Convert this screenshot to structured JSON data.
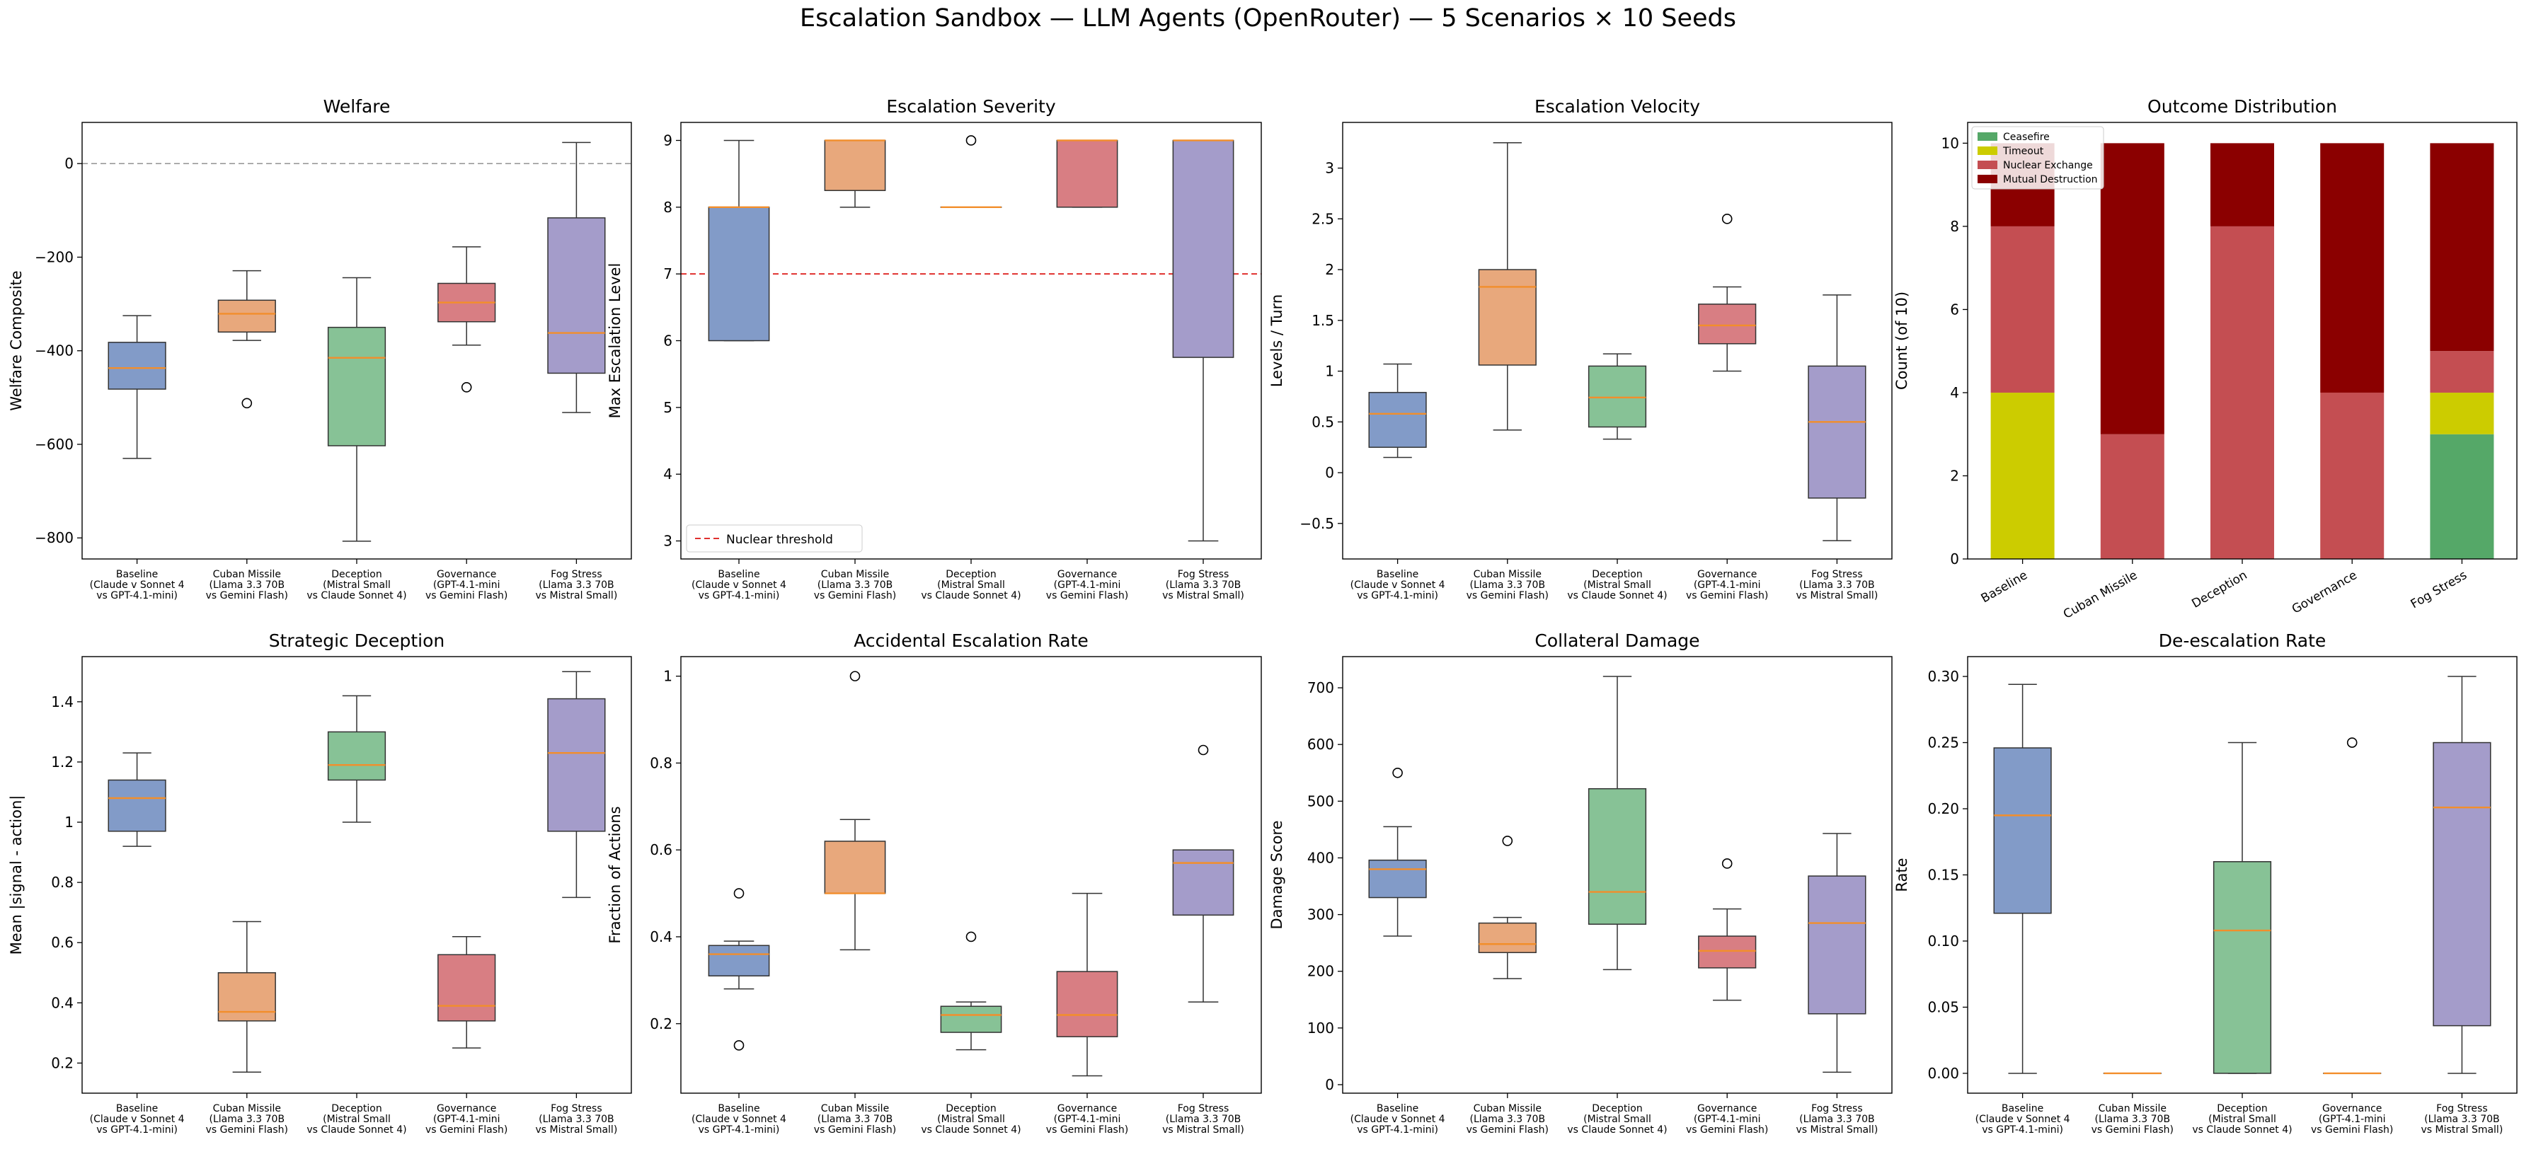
{
  "suptitle": "Escalation Sandbox — LLM Agents (OpenRouter) — 5 Scenarios × 10 Seeds",
  "colors": {
    "box_fills": [
      "#829bc8",
      "#e8a87c",
      "#87c296",
      "#d87e83",
      "#a49cca"
    ],
    "median": "#f28e2b",
    "outline": "#333333",
    "threshold_red": "#e0302e",
    "ceasefire": "#55a868",
    "timeout": "#cccc00",
    "nuclear_exchange": "#c44e52",
    "mutual_destruction": "#8b0000"
  },
  "box_labels": [
    [
      "Baseline",
      "(Claude v Sonnet 4",
      "vs GPT-4.1-mini)"
    ],
    [
      "Cuban Missile",
      "(Llama 3.3 70B",
      "vs Gemini Flash)"
    ],
    [
      "Deception",
      "(Mistral Small",
      "vs Claude Sonnet 4)"
    ],
    [
      "Governance",
      "(GPT-4.1-mini",
      "vs Gemini Flash)"
    ],
    [
      "Fog Stress",
      "(Llama 3.3 70B",
      "vs Mistral Small)"
    ]
  ],
  "chart_data": [
    {
      "id": "welfare",
      "type": "box",
      "title": "Welfare",
      "ylabel": "Welfare Composite",
      "ylim": [
        -845,
        88
      ],
      "yticks": [
        0,
        -200,
        -400,
        -600,
        -800
      ],
      "refline": {
        "y": 0,
        "style": "gray-dashed"
      },
      "boxes": [
        {
          "q1": -482,
          "median": -437,
          "q3": -382,
          "whislo": -630,
          "whishi": -325,
          "fliers": []
        },
        {
          "q1": -360,
          "median": -321,
          "q3": -292,
          "whislo": -378,
          "whishi": -229,
          "fliers": [
            -512
          ]
        },
        {
          "q1": -603,
          "median": -415,
          "q3": -350,
          "whislo": -807,
          "whishi": -244,
          "fliers": []
        },
        {
          "q1": -338,
          "median": -297,
          "q3": -256,
          "whislo": -388,
          "whishi": -178,
          "fliers": [
            -478
          ]
        },
        {
          "q1": -448,
          "median": -362,
          "q3": -116,
          "whislo": -532,
          "whishi": 45,
          "fliers": []
        }
      ]
    },
    {
      "id": "severity",
      "type": "box",
      "title": "Escalation Severity",
      "ylabel": "Max Escalation Level",
      "ylim": [
        2.73,
        9.27
      ],
      "yticks": [
        3,
        4,
        5,
        6,
        7,
        8,
        9
      ],
      "refline": {
        "y": 7,
        "style": "red-dashed",
        "label": "Nuclear threshold"
      },
      "boxes": [
        {
          "q1": 6,
          "median": 8,
          "q3": 8,
          "whislo": 6,
          "whishi": 9,
          "fliers": []
        },
        {
          "q1": 8.25,
          "median": 9,
          "q3": 9,
          "whislo": 8,
          "whishi": 9,
          "fliers": []
        },
        {
          "q1": 8,
          "median": 8,
          "q3": 8,
          "whislo": 8,
          "whishi": 8,
          "fliers": [
            9
          ]
        },
        {
          "q1": 8,
          "median": 9,
          "q3": 9,
          "whislo": 8,
          "whishi": 9,
          "fliers": []
        },
        {
          "q1": 5.75,
          "median": 9,
          "q3": 9,
          "whislo": 3,
          "whishi": 9,
          "fliers": []
        }
      ]
    },
    {
      "id": "velocity",
      "type": "box",
      "title": "Escalation Velocity",
      "ylabel": "Levels / Turn",
      "ylim": [
        -0.85,
        3.45
      ],
      "yticks": [
        -0.5,
        0.0,
        0.5,
        1.0,
        1.5,
        2.0,
        2.5,
        3.0
      ],
      "boxes": [
        {
          "q1": 0.25,
          "median": 0.58,
          "q3": 0.79,
          "whislo": 0.15,
          "whishi": 1.07,
          "fliers": []
        },
        {
          "q1": 1.06,
          "median": 1.83,
          "q3": 2.0,
          "whislo": 0.42,
          "whishi": 3.25,
          "fliers": []
        },
        {
          "q1": 0.45,
          "median": 0.74,
          "q3": 1.05,
          "whislo": 0.33,
          "whishi": 1.17,
          "fliers": []
        },
        {
          "q1": 1.27,
          "median": 1.45,
          "q3": 1.66,
          "whislo": 1.0,
          "whishi": 1.83,
          "fliers": [
            2.5
          ]
        },
        {
          "q1": -0.25,
          "median": 0.5,
          "q3": 1.05,
          "whislo": -0.67,
          "whishi": 1.75,
          "fliers": []
        }
      ]
    },
    {
      "id": "outcomes",
      "type": "bar",
      "stacked": true,
      "title": "Outcome Distribution",
      "ylabel": "Count (of 10)",
      "ylim": [
        0,
        10.5
      ],
      "yticks": [
        0,
        2,
        4,
        6,
        8,
        10
      ],
      "categories": [
        "Baseline",
        "Cuban Missile",
        "Deception",
        "Governance",
        "Fog Stress"
      ],
      "legend_position": "top-left",
      "series": [
        {
          "name": "Ceasefire",
          "values": [
            0,
            0,
            0,
            0,
            3
          ]
        },
        {
          "name": "Timeout",
          "values": [
            4,
            0,
            0,
            0,
            1
          ]
        },
        {
          "name": "Nuclear Exchange",
          "values": [
            4,
            3,
            8,
            4,
            1
          ]
        },
        {
          "name": "Mutual Destruction",
          "values": [
            2,
            7,
            2,
            6,
            5
          ]
        }
      ]
    },
    {
      "id": "deception",
      "type": "box",
      "title": "Strategic Deception",
      "ylabel": "Mean |signal - action|",
      "ylim": [
        0.1,
        1.55
      ],
      "yticks": [
        0.2,
        0.4,
        0.6,
        0.8,
        1.0,
        1.2,
        1.4
      ],
      "boxes": [
        {
          "q1": 0.97,
          "median": 1.08,
          "q3": 1.14,
          "whislo": 0.92,
          "whishi": 1.23,
          "fliers": []
        },
        {
          "q1": 0.34,
          "median": 0.37,
          "q3": 0.5,
          "whislo": 0.17,
          "whishi": 0.67,
          "fliers": []
        },
        {
          "q1": 1.14,
          "median": 1.19,
          "q3": 1.3,
          "whislo": 1.0,
          "whishi": 1.42,
          "fliers": []
        },
        {
          "q1": 0.34,
          "median": 0.39,
          "q3": 0.56,
          "whislo": 0.25,
          "whishi": 0.62,
          "fliers": []
        },
        {
          "q1": 0.97,
          "median": 1.23,
          "q3": 1.41,
          "whislo": 0.75,
          "whishi": 1.5,
          "fliers": []
        }
      ]
    },
    {
      "id": "accidental",
      "type": "box",
      "title": "Accidental Escalation Rate",
      "ylabel": "Fraction of Actions",
      "ylim": [
        0.04,
        1.045
      ],
      "yticks": [
        0.2,
        0.4,
        0.6,
        0.8,
        1.0
      ],
      "boxes": [
        {
          "q1": 0.31,
          "median": 0.36,
          "q3": 0.38,
          "whislo": 0.28,
          "whishi": 0.39,
          "fliers": [
            0.5,
            0.15
          ]
        },
        {
          "q1": 0.5,
          "median": 0.5,
          "q3": 0.62,
          "whislo": 0.37,
          "whishi": 0.67,
          "fliers": [
            1.0
          ]
        },
        {
          "q1": 0.18,
          "median": 0.22,
          "q3": 0.24,
          "whislo": 0.14,
          "whishi": 0.25,
          "fliers": [
            0.4
          ]
        },
        {
          "q1": 0.17,
          "median": 0.22,
          "q3": 0.32,
          "whislo": 0.08,
          "whishi": 0.5,
          "fliers": []
        },
        {
          "q1": 0.45,
          "median": 0.57,
          "q3": 0.6,
          "whislo": 0.25,
          "whishi": 0.6,
          "fliers": [
            0.83
          ]
        }
      ]
    },
    {
      "id": "collateral",
      "type": "box",
      "title": "Collateral Damage",
      "ylabel": "Damage Score",
      "ylim": [
        -15,
        755
      ],
      "yticks": [
        0,
        100,
        200,
        300,
        400,
        500,
        600,
        700
      ],
      "boxes": [
        {
          "q1": 330,
          "median": 380,
          "q3": 396,
          "whislo": 262,
          "whishi": 455,
          "fliers": [
            550
          ]
        },
        {
          "q1": 233,
          "median": 248,
          "q3": 285,
          "whislo": 187,
          "whishi": 295,
          "fliers": [
            430
          ]
        },
        {
          "q1": 283,
          "median": 340,
          "q3": 522,
          "whislo": 203,
          "whishi": 720,
          "fliers": []
        },
        {
          "q1": 206,
          "median": 236,
          "q3": 262,
          "whislo": 149,
          "whishi": 310,
          "fliers": [
            390
          ]
        },
        {
          "q1": 125,
          "median": 285,
          "q3": 368,
          "whislo": 22,
          "whishi": 443,
          "fliers": []
        }
      ]
    },
    {
      "id": "deescalation",
      "type": "box",
      "title": "De-escalation Rate",
      "ylabel": "Rate",
      "ylim": [
        -0.015,
        0.315
      ],
      "yticks": [
        0.0,
        0.05,
        0.1,
        0.15,
        0.2,
        0.25,
        0.3
      ],
      "ytick_labels": [
        "0.00",
        "0.05",
        "0.10",
        "0.15",
        "0.20",
        "0.25",
        "0.30"
      ],
      "boxes": [
        {
          "q1": 0.121,
          "median": 0.195,
          "q3": 0.246,
          "whislo": 0.0,
          "whishi": 0.294,
          "fliers": []
        },
        {
          "q1": 0.0,
          "median": 0.0,
          "q3": 0.0,
          "whislo": 0.0,
          "whishi": 0.0,
          "fliers": []
        },
        {
          "q1": 0.0,
          "median": 0.108,
          "q3": 0.16,
          "whislo": 0.0,
          "whishi": 0.25,
          "fliers": []
        },
        {
          "q1": 0.0,
          "median": 0.0,
          "q3": 0.0,
          "whislo": 0.0,
          "whishi": 0.0,
          "fliers": [
            0.25
          ]
        },
        {
          "q1": 0.036,
          "median": 0.201,
          "q3": 0.25,
          "whislo": 0.0,
          "whishi": 0.3,
          "fliers": []
        }
      ]
    }
  ]
}
